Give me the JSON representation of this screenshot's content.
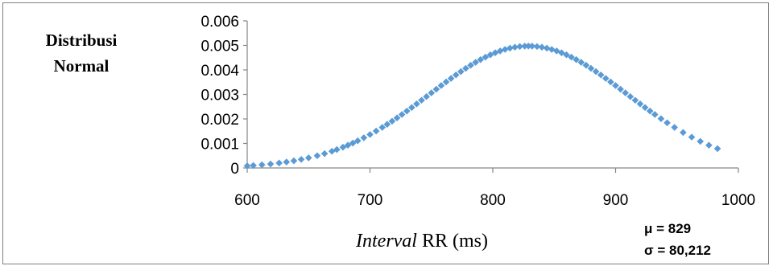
{
  "chart_data": {
    "type": "scatter",
    "ylabel_line1": "Distribusi",
    "ylabel_line2": "Normal",
    "xlabel_italic": "Interval",
    "xlabel_rest": " RR (ms)",
    "xlim": [
      600,
      1000
    ],
    "ylim": [
      0,
      0.006
    ],
    "x_ticks": [
      "600",
      "700",
      "800",
      "900",
      "1000"
    ],
    "y_ticks": [
      "0",
      "0.001",
      "0.002",
      "0.003",
      "0.004",
      "0.005",
      "0.006"
    ],
    "grid": false,
    "mean_label": "μ = 829",
    "sd_label": "σ = 80,212",
    "mu": 829,
    "sigma": 80.212,
    "marker_color": "#5b9bd5",
    "x": [
      600,
      605,
      612,
      619,
      626,
      632,
      638,
      644,
      650,
      657,
      663,
      669,
      673,
      678,
      682,
      686,
      690,
      695,
      700,
      705,
      710,
      714,
      718,
      722,
      726,
      730,
      734,
      738,
      742,
      746,
      750,
      754,
      758,
      762,
      766,
      770,
      774,
      778,
      782,
      786,
      790,
      794,
      798,
      802,
      806,
      810,
      814,
      818,
      822,
      826,
      829,
      832,
      836,
      840,
      844,
      848,
      852,
      856,
      860,
      864,
      868,
      872,
      876,
      880,
      884,
      888,
      892,
      896,
      900,
      904,
      908,
      912,
      916,
      920,
      924,
      928,
      932,
      937,
      942,
      948,
      955,
      962,
      969,
      976,
      983
    ]
  }
}
